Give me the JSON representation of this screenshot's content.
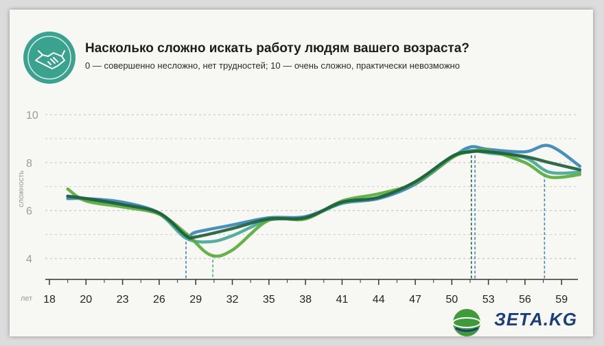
{
  "header": {
    "title": "Насколько сложно искать работу людям вашего возраста?",
    "subtitle": "0 — совершенно несложно, нет трудностей; 10 — очень сложно, практически невозможно",
    "logo_icon": "handshake-icon"
  },
  "watermark": {
    "text": "ЗЕТА.KG",
    "icon": "globe-icon"
  },
  "chart_data": {
    "type": "line",
    "xlabel": "лет",
    "ylabel": "сложность",
    "x_ticks": [
      18,
      20,
      23,
      26,
      29,
      32,
      35,
      38,
      41,
      44,
      47,
      50,
      53,
      56,
      59
    ],
    "y_ticks": [
      4,
      6,
      8,
      10
    ],
    "xlim": [
      18,
      61.5
    ],
    "ylim": [
      3.1,
      10.2
    ],
    "grid": "horizontal-dotted",
    "series": [
      {
        "color": "#3a86b5",
        "x": [
          19,
          20,
          23,
          26,
          28.2,
          29,
          32,
          35,
          38,
          41,
          44,
          47,
          50,
          51.5,
          53,
          56,
          58,
          60.5
        ],
        "y": [
          6.5,
          6.5,
          6.35,
          5.9,
          4.95,
          5.1,
          5.4,
          5.7,
          5.75,
          6.3,
          6.5,
          7.1,
          8.2,
          8.65,
          8.55,
          8.45,
          8.7,
          7.85
        ]
      },
      {
        "color": "#45a898",
        "x": [
          19,
          20,
          23,
          26,
          28.2,
          30.2,
          32,
          35,
          38,
          41,
          44,
          47,
          50,
          51.5,
          53,
          56,
          58,
          60.5
        ],
        "y": [
          6.6,
          6.45,
          6.25,
          5.85,
          4.85,
          4.7,
          4.95,
          5.6,
          5.7,
          6.3,
          6.55,
          7.2,
          8.25,
          8.5,
          8.4,
          8.2,
          7.6,
          7.6
        ]
      },
      {
        "color": "#5aab3c",
        "x": [
          19,
          20,
          23,
          26,
          28.2,
          30.2,
          32,
          35,
          38,
          41,
          44,
          47,
          50,
          51.5,
          53,
          56,
          58,
          60.5
        ],
        "y": [
          6.9,
          6.4,
          6.15,
          5.85,
          5.05,
          4.15,
          4.35,
          5.6,
          5.65,
          6.4,
          6.7,
          7.15,
          8.2,
          8.45,
          8.5,
          8.0,
          7.4,
          7.5
        ]
      },
      {
        "color": "#1f5e3c",
        "x": [
          19,
          20,
          23,
          26,
          28.2,
          29,
          32,
          35,
          38,
          41,
          44,
          47,
          50,
          51.5,
          53,
          56,
          58,
          60.5
        ],
        "y": [
          6.6,
          6.5,
          6.25,
          5.9,
          4.95,
          4.9,
          5.25,
          5.65,
          5.7,
          6.35,
          6.55,
          7.2,
          8.25,
          8.45,
          8.45,
          8.25,
          8.0,
          7.7
        ]
      }
    ],
    "markers": [
      {
        "x": 28.2,
        "y": 4.9,
        "color": "#3a86b5"
      },
      {
        "x": 30.4,
        "y": 4.15,
        "color": "#45a898"
      },
      {
        "x": 51.6,
        "y": 8.3,
        "color": "#1f5e3c"
      },
      {
        "x": 51.9,
        "y": 8.3,
        "color": "#3a86b5"
      },
      {
        "x": 57.6,
        "y": 7.5,
        "color": "#3a86b5"
      }
    ]
  }
}
